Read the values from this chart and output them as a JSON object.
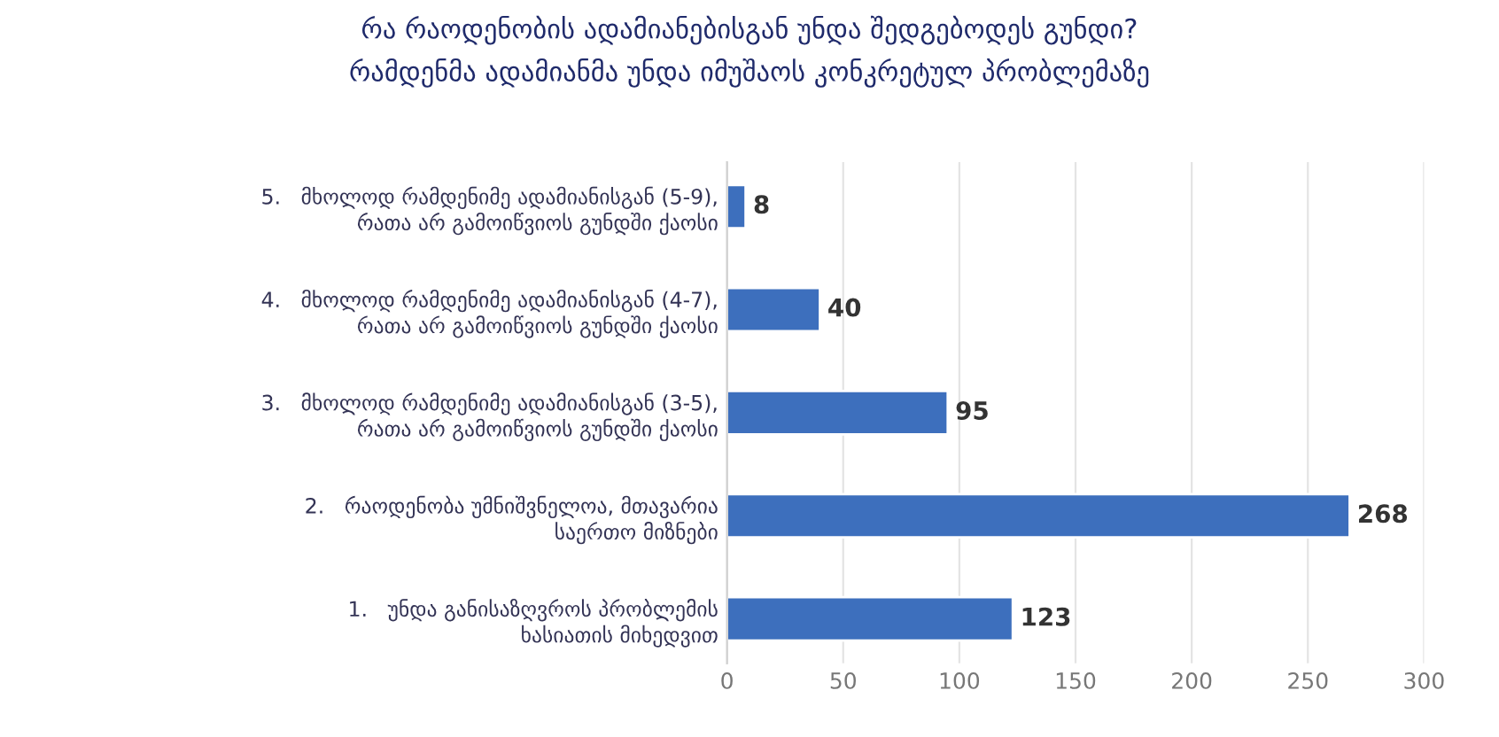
{
  "chart_data": {
    "type": "bar",
    "orientation": "horizontal",
    "title": "რა რაოდენობის ადამიანებისგან უნდა შედგებოდეს გუნდი?\nრამდენმა ადამიანმა უნდა იმუშაოს კონკრეტულ პრობლემაზე",
    "categories": [
      "5.   მხოლოდ რამდენიმე ადამიანისგან (5-9),\nრათა არ გამოიწვიოს გუნდში ქაოსი",
      "4.   მხოლოდ რამდენიმე ადამიანისგან (4-7),\nრათა არ გამოიწვიოს გუნდში ქაოსი",
      "3.   მხოლოდ რამდენიმე ადამიანისგან (3-5),\nრათა არ გამოიწვიოს გუნდში ქაოსი",
      "2.   რაოდენობა უმნიშვნელოა, მთავარია\nსაერთო მიზნები",
      "1.   უნდა განისაზღვროს პრობლემის\nხასიათის მიხედვით"
    ],
    "values": [
      8,
      40,
      95,
      268,
      123
    ],
    "color": "#3d6fbd",
    "xlim": [
      0,
      300
    ],
    "xticks": [
      0,
      50,
      100,
      150,
      200,
      250,
      300
    ],
    "grid": "x",
    "data_labels": true
  }
}
